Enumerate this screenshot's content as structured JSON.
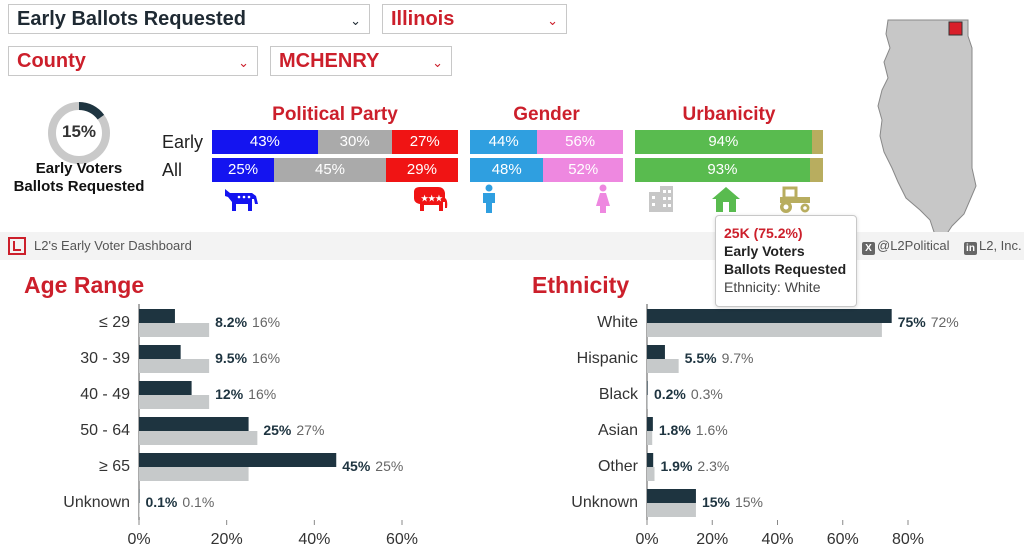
{
  "filters": {
    "metric": "Early Ballots Requested",
    "state": "Illinois",
    "level": "County",
    "county": "MCHENRY"
  },
  "summary": {
    "percent": "15%",
    "percent_value": 15,
    "label_line1": "Early Voters",
    "label_line2": "Ballots Requested"
  },
  "breakdown": {
    "row_early": "Early",
    "row_all": "All",
    "party": {
      "title": "Political Party",
      "early": [
        {
          "label": "43%",
          "value": 43,
          "color": "#1414f0"
        },
        {
          "label": "30%",
          "value": 30,
          "color": "#aaaaaa"
        },
        {
          "label": "27%",
          "value": 27,
          "color": "#f01414"
        }
      ],
      "all": [
        {
          "label": "25%",
          "value": 25,
          "color": "#1414f0"
        },
        {
          "label": "45%",
          "value": 45,
          "color": "#aaaaaa"
        },
        {
          "label": "29%",
          "value": 29,
          "color": "#f01414"
        }
      ],
      "icons": [
        "democrat-donkey-icon",
        "republican-elephant-icon"
      ]
    },
    "gender": {
      "title": "Gender",
      "early": [
        {
          "label": "44%",
          "value": 44,
          "color": "#2f9fe0"
        },
        {
          "label": "56%",
          "value": 56,
          "color": "#ee88e0"
        }
      ],
      "all": [
        {
          "label": "48%",
          "value": 48,
          "color": "#2f9fe0"
        },
        {
          "label": "52%",
          "value": 52,
          "color": "#ee88e0"
        }
      ],
      "icons": [
        "male-icon",
        "female-icon"
      ]
    },
    "urbanicity": {
      "title": "Urbanicity",
      "early": [
        {
          "label": "94%",
          "value": 94,
          "color": "#59bb4f"
        },
        {
          "label": "",
          "value": 6,
          "color": "#b8ad5f"
        }
      ],
      "all": [
        {
          "label": "93%",
          "value": 93,
          "color": "#59bb4f"
        },
        {
          "label": "",
          "value": 7,
          "color": "#b8ad5f"
        }
      ],
      "icons": [
        "urban-building-icon",
        "suburban-house-icon",
        "rural-tractor-icon"
      ]
    }
  },
  "dashboard": {
    "title": "L2's Early Voter Dashboard",
    "twitter": "@L2Political",
    "linkedin": "L2, Inc."
  },
  "tooltip": {
    "value": "25K (75.2%)",
    "line1": "Early Voters",
    "line2": "Ballots Requested",
    "ethnicity": "Ethnicity: White"
  },
  "chart_data": [
    {
      "type": "bar",
      "orientation": "horizontal",
      "title": "Age Range",
      "categories": [
        "≤ 29",
        "30 - 39",
        "40 - 49",
        "50 - 64",
        "≥ 65",
        "Unknown"
      ],
      "series": [
        {
          "values": [
            8.2,
            9.5,
            12,
            25,
            45,
            0.1
          ],
          "labels": [
            "8.2%",
            "9.5%",
            "12%",
            "25%",
            "45%",
            "0.1%"
          ],
          "color": "#1e3440"
        },
        {
          "values": [
            16,
            16,
            16,
            27,
            25,
            0.1
          ],
          "labels": [
            "16%",
            "16%",
            "16%",
            "27%",
            "25%",
            "0.1%"
          ],
          "color": "#c6c9ca"
        }
      ],
      "xlim": [
        0,
        60
      ],
      "ticks": [
        "0%",
        "20%",
        "40%",
        "60%"
      ]
    },
    {
      "type": "bar",
      "orientation": "horizontal",
      "title": "Ethnicity",
      "categories": [
        "White",
        "Hispanic",
        "Black",
        "Asian",
        "Other",
        "Unknown"
      ],
      "series": [
        {
          "values": [
            75,
            5.5,
            0.2,
            1.8,
            1.9,
            15
          ],
          "labels": [
            "75%",
            "5.5%",
            "0.2%",
            "1.8%",
            "1.9%",
            "15%"
          ],
          "color": "#1e3440"
        },
        {
          "values": [
            72,
            9.7,
            0.3,
            1.6,
            2.3,
            15
          ],
          "labels": [
            "72%",
            "9.7%",
            "0.3%",
            "1.6%",
            "2.3%",
            "15%"
          ],
          "color": "#c6c9ca"
        }
      ],
      "xlim": [
        0,
        80
      ],
      "ticks": [
        "0%",
        "20%",
        "40%",
        "60%",
        "80%"
      ]
    }
  ]
}
